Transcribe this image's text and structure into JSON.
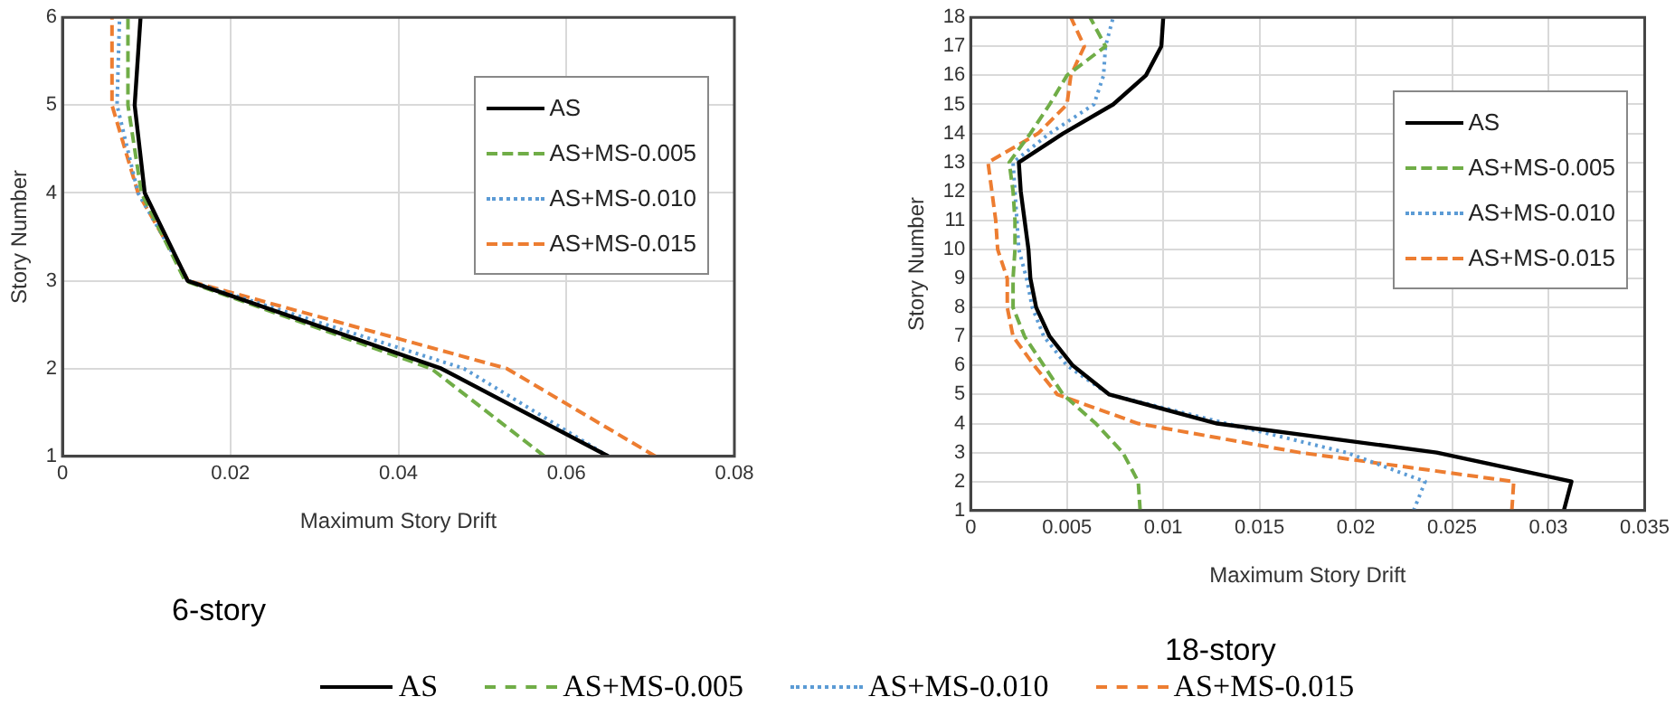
{
  "chart_data": [
    {
      "type": "line",
      "xlabel": "Maximum Story Drift",
      "ylabel": "Story Number",
      "annotations": [
        "6-story"
      ],
      "xlim": [
        0,
        0.08
      ],
      "xticks": [
        0,
        0.02,
        0.04,
        0.06,
        0.08
      ],
      "ylim": [
        1,
        6
      ],
      "yticks": [
        1,
        2,
        3,
        4,
        5,
        6
      ],
      "grid": true,
      "legend": "top right",
      "marker": "none",
      "series": [
        {
          "name": "AS",
          "color": "#000000",
          "line_style": "solid",
          "x": [
            0.065,
            0.0451,
            0.0149,
            0.0098,
            0.0086,
            0.0093
          ],
          "values": [
            1,
            2,
            3,
            4,
            5,
            6
          ]
        },
        {
          "name": "AS+MS-0.005",
          "color": "#70ad47",
          "line_style": "dashed",
          "x": [
            0.0574,
            0.0439,
            0.0146,
            0.0094,
            0.0078,
            0.0078
          ],
          "values": [
            1,
            2,
            3,
            4,
            5,
            6
          ]
        },
        {
          "name": "AS+MS-0.010",
          "color": "#5b9bd5",
          "line_style": "dotted",
          "x": [
            0.065,
            0.0478,
            0.015,
            0.009,
            0.0065,
            0.0068
          ],
          "values": [
            1,
            2,
            3,
            4,
            5,
            6
          ]
        },
        {
          "name": "AS+MS-0.015",
          "color": "#ed7d31",
          "line_style": "dashed",
          "x": [
            0.0706,
            0.0529,
            0.015,
            0.009,
            0.0059,
            0.0059
          ],
          "values": [
            1,
            2,
            3,
            4,
            5,
            6
          ]
        }
      ]
    },
    {
      "type": "line",
      "xlabel": "Maximum Story Drift",
      "ylabel": "Story Number",
      "annotations": [
        "18-story"
      ],
      "xlim": [
        0,
        0.035
      ],
      "xticks": [
        0,
        0.005,
        0.01,
        0.015,
        0.02,
        0.025,
        0.03,
        0.035
      ],
      "ylim": [
        1,
        18
      ],
      "yticks": [
        1,
        2,
        3,
        4,
        5,
        6,
        7,
        8,
        9,
        10,
        11,
        12,
        13,
        14,
        15,
        16,
        17,
        18
      ],
      "grid": true,
      "legend": "top right",
      "marker": "none",
      "series": [
        {
          "name": "AS",
          "color": "#000000",
          "line_style": "solid",
          "x": [
            0.0308,
            0.0312,
            0.0242,
            0.0128,
            0.0072,
            0.0053,
            0.0041,
            0.0034,
            0.0031,
            0.003,
            0.0028,
            0.0026,
            0.0025,
            0.0048,
            0.0074,
            0.0091,
            0.0099,
            0.01
          ],
          "values": [
            1,
            2,
            3,
            4,
            5,
            6,
            7,
            8,
            9,
            10,
            11,
            12,
            13,
            14,
            15,
            16,
            17,
            18
          ]
        },
        {
          "name": "AS+MS-0.005",
          "color": "#70ad47",
          "line_style": "dashed",
          "x": [
            0.0088,
            0.0087,
            0.0079,
            0.0065,
            0.0048,
            0.0038,
            0.0028,
            0.0022,
            0.0022,
            0.0023,
            0.0023,
            0.0022,
            0.002,
            0.0031,
            0.0041,
            0.005,
            0.007,
            0.0062
          ],
          "values": [
            1,
            2,
            3,
            4,
            5,
            6,
            7,
            8,
            9,
            10,
            11,
            12,
            13,
            14,
            15,
            16,
            17,
            18
          ]
        },
        {
          "name": "AS+MS-0.010",
          "color": "#5b9bd5",
          "line_style": "dotted",
          "x": [
            0.023,
            0.0236,
            0.0195,
            0.0133,
            0.0072,
            0.005,
            0.0038,
            0.0032,
            0.0029,
            0.0025,
            0.0024,
            0.0023,
            0.0022,
            0.0041,
            0.0064,
            0.0069,
            0.007,
            0.0074
          ],
          "values": [
            1,
            2,
            3,
            4,
            5,
            6,
            7,
            8,
            9,
            10,
            11,
            12,
            13,
            14,
            15,
            16,
            17,
            18
          ]
        },
        {
          "name": "AS+MS-0.015",
          "color": "#ed7d31",
          "line_style": "dashed",
          "x": [
            0.0281,
            0.0282,
            0.0171,
            0.0087,
            0.0045,
            0.0033,
            0.0022,
            0.0019,
            0.0019,
            0.0014,
            0.0013,
            0.0011,
            0.0009,
            0.0035,
            0.005,
            0.0052,
            0.0059,
            0.0052
          ],
          "values": [
            1,
            2,
            3,
            4,
            5,
            6,
            7,
            8,
            9,
            10,
            11,
            12,
            13,
            14,
            15,
            16,
            17,
            18
          ]
        }
      ]
    }
  ]
}
